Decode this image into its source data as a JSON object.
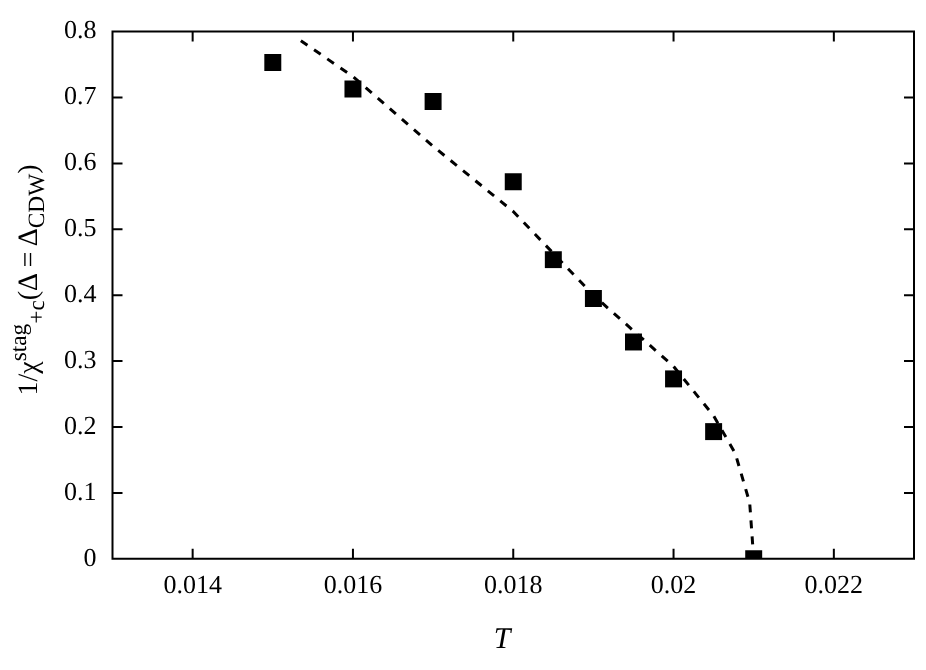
{
  "chart_data": {
    "type": "scatter",
    "xlabel": "T",
    "ylabel": "1/χ$^{stag}$$_{+c}$(Δ = Δ$_{CDW}$)",
    "xlim": [
      0.013,
      0.023
    ],
    "xticks": [
      0.014,
      0.016,
      0.018,
      0.02,
      0.022
    ],
    "ylim": [
      0,
      0.8
    ],
    "yticks": [
      0,
      0.1,
      0.2,
      0.3,
      0.4,
      0.5,
      0.6,
      0.7,
      0.8
    ],
    "grid": false,
    "legend": false,
    "series": [
      {
        "color": "#000000",
        "marker": "square",
        "x": [
          0.015,
          0.016,
          0.017,
          0.018,
          0.0185,
          0.019,
          0.0195,
          0.02,
          0.0205,
          0.021
        ],
        "values": [
          0.753,
          0.713,
          0.694,
          0.572,
          0.454,
          0.395,
          0.329,
          0.273,
          0.193,
          0
        ]
      },
      {
        "type": "line",
        "color": "#000000",
        "marker": "none",
        "line_style": "dashed",
        "x": [
          0.01535,
          0.016,
          0.017,
          0.018,
          0.019,
          0.02,
          0.0205,
          0.02077,
          0.02095,
          0.021
        ],
        "values": [
          0.786,
          0.732,
          0.626,
          0.527,
          0.4,
          0.292,
          0.217,
          0.16,
          0.085,
          0
        ]
      }
    ]
  }
}
